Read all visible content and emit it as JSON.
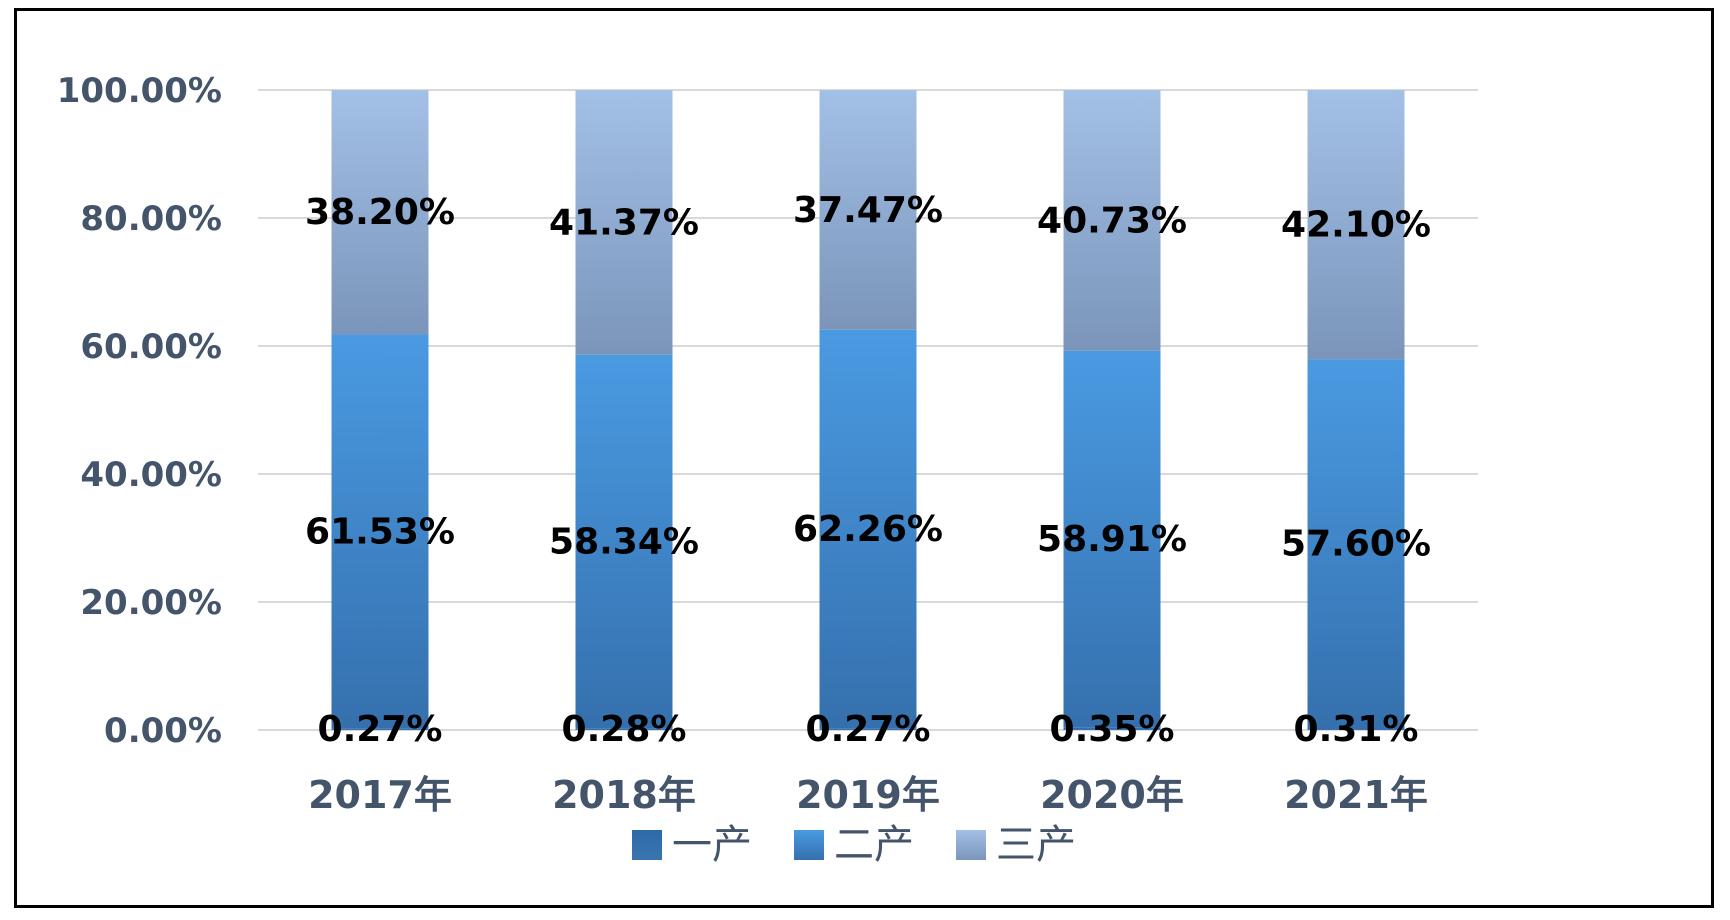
{
  "chart_data": {
    "type": "bar",
    "stacked": true,
    "title": "",
    "xlabel": "",
    "ylabel": "",
    "categories": [
      "2017年",
      "2018年",
      "2019年",
      "2020年",
      "2021年"
    ],
    "series": [
      {
        "name": "一产",
        "values": [
          0.27,
          0.28,
          0.27,
          0.35,
          0.31
        ],
        "labels": [
          "0.27%",
          "0.28%",
          "0.27%",
          "0.35%",
          "0.31%"
        ],
        "color": "#3a74b0"
      },
      {
        "name": "二产",
        "values": [
          61.53,
          58.34,
          62.26,
          58.91,
          57.6
        ],
        "labels": [
          "61.53%",
          "58.34%",
          "62.26%",
          "58.91%",
          "57.60%"
        ],
        "color": "#4a99e0"
      },
      {
        "name": "三产",
        "values": [
          38.2,
          41.37,
          37.47,
          40.73,
          42.1
        ],
        "labels": [
          "38.20%",
          "41.37%",
          "37.47%",
          "40.73%",
          "42.10%"
        ],
        "color": "#a3bfe3"
      }
    ],
    "ylim": [
      0,
      100
    ],
    "yticks": [
      "0.00%",
      "20.00%",
      "40.00%",
      "60.00%",
      "80.00%",
      "100.00%"
    ],
    "grid": true,
    "legend": "bottom"
  }
}
